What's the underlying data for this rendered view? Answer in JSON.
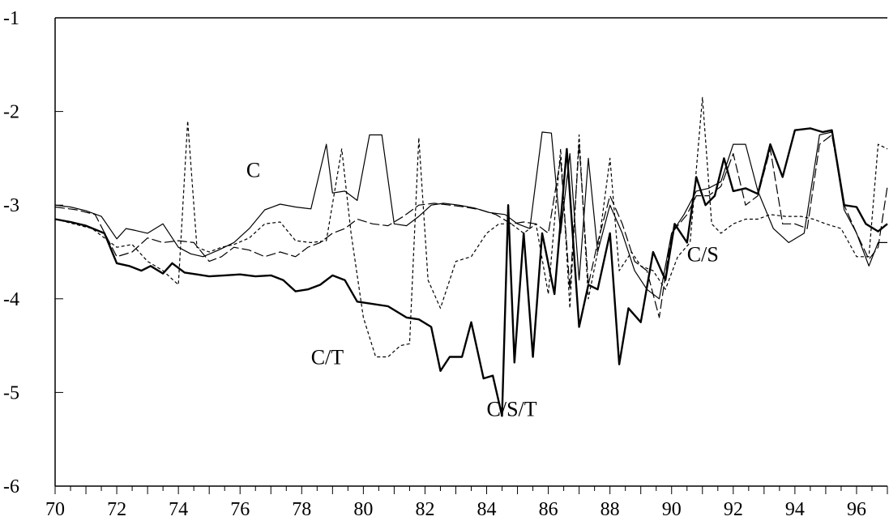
{
  "chart_data": {
    "type": "line",
    "title": "",
    "xlabel": "",
    "ylabel": "",
    "xlim": [
      70,
      97
    ],
    "ylim": [
      -6,
      -1
    ],
    "x_ticks": [
      "70",
      "72",
      "74",
      "76",
      "78",
      "80",
      "82",
      "84",
      "86",
      "88",
      "90",
      "92",
      "94",
      "96"
    ],
    "y_ticks": [
      "-1",
      "-2",
      "-3",
      "-4",
      "-5",
      "-6"
    ],
    "grid": false,
    "annotations": [
      {
        "text": "C",
        "x": 76.2,
        "y": -2.7
      },
      {
        "text": "C/T",
        "x": 78.3,
        "y": -4.7
      },
      {
        "text": "C/S/T",
        "x": 84.0,
        "y": -5.25
      },
      {
        "text": "C/S",
        "x": 90.5,
        "y": -3.6
      }
    ],
    "series": [
      {
        "style": "solid-thin",
        "points": [
          [
            70,
            -3.0
          ],
          [
            70.5,
            -3.02
          ],
          [
            71,
            -3.06
          ],
          [
            71.5,
            -3.12
          ],
          [
            72,
            -3.36
          ],
          [
            72.3,
            -3.25
          ],
          [
            72.6,
            -3.27
          ],
          [
            73,
            -3.3
          ],
          [
            73.5,
            -3.2
          ],
          [
            74,
            -3.45
          ],
          [
            74.4,
            -3.52
          ],
          [
            74.8,
            -3.55
          ],
          [
            75.3,
            -3.48
          ],
          [
            75.8,
            -3.4
          ],
          [
            76.3,
            -3.25
          ],
          [
            76.8,
            -3.05
          ],
          [
            77.3,
            -2.99
          ],
          [
            77.8,
            -3.02
          ],
          [
            78.3,
            -3.04
          ],
          [
            78.8,
            -2.35
          ],
          [
            79.0,
            -2.87
          ],
          [
            79.4,
            -2.85
          ],
          [
            79.8,
            -2.95
          ],
          [
            80.2,
            -2.25
          ],
          [
            80.6,
            -2.25
          ],
          [
            81.0,
            -3.2
          ],
          [
            81.4,
            -3.22
          ],
          [
            81.8,
            -3.12
          ],
          [
            82.2,
            -3.0
          ],
          [
            82.6,
            -2.98
          ],
          [
            83.1,
            -3.0
          ],
          [
            83.6,
            -3.03
          ],
          [
            84.1,
            -3.08
          ],
          [
            84.6,
            -3.1
          ],
          [
            85.0,
            -3.2
          ],
          [
            85.4,
            -3.25
          ],
          [
            85.8,
            -2.22
          ],
          [
            86.1,
            -2.23
          ],
          [
            86.4,
            -3.3
          ],
          [
            86.7,
            -2.45
          ],
          [
            87.0,
            -3.8
          ],
          [
            87.3,
            -2.5
          ],
          [
            87.6,
            -3.5
          ],
          [
            88.0,
            -3.0
          ],
          [
            88.4,
            -3.3
          ],
          [
            88.8,
            -3.7
          ],
          [
            89.2,
            -3.9
          ],
          [
            89.6,
            -4.0
          ],
          [
            90.0,
            -3.3
          ],
          [
            90.4,
            -3.1
          ],
          [
            90.8,
            -2.85
          ],
          [
            91.2,
            -2.82
          ],
          [
            91.6,
            -2.75
          ],
          [
            92.0,
            -2.35
          ],
          [
            92.4,
            -2.35
          ],
          [
            92.8,
            -2.85
          ],
          [
            93.3,
            -3.25
          ],
          [
            93.8,
            -3.4
          ],
          [
            94.3,
            -3.3
          ],
          [
            94.8,
            -2.25
          ],
          [
            95.2,
            -2.22
          ],
          [
            95.6,
            -3.05
          ],
          [
            96.0,
            -3.3
          ],
          [
            96.4,
            -3.65
          ],
          [
            96.7,
            -3.4
          ],
          [
            97,
            -3.4
          ]
        ]
      },
      {
        "style": "solid-thick",
        "points": [
          [
            70,
            -3.15
          ],
          [
            70.5,
            -3.18
          ],
          [
            71,
            -3.22
          ],
          [
            71.6,
            -3.3
          ],
          [
            72,
            -3.62
          ],
          [
            72.4,
            -3.65
          ],
          [
            72.8,
            -3.7
          ],
          [
            73.1,
            -3.65
          ],
          [
            73.5,
            -3.73
          ],
          [
            73.8,
            -3.62
          ],
          [
            74.2,
            -3.72
          ],
          [
            74.6,
            -3.74
          ],
          [
            75.0,
            -3.76
          ],
          [
            75.5,
            -3.75
          ],
          [
            76,
            -3.74
          ],
          [
            76.5,
            -3.76
          ],
          [
            77,
            -3.75
          ],
          [
            77.4,
            -3.8
          ],
          [
            77.8,
            -3.92
          ],
          [
            78.2,
            -3.9
          ],
          [
            78.6,
            -3.85
          ],
          [
            79.0,
            -3.75
          ],
          [
            79.4,
            -3.8
          ],
          [
            79.8,
            -4.03
          ],
          [
            80.2,
            -4.05
          ],
          [
            80.8,
            -4.08
          ],
          [
            81.4,
            -4.2
          ],
          [
            81.8,
            -4.22
          ],
          [
            82.2,
            -4.3
          ],
          [
            82.5,
            -4.77
          ],
          [
            82.8,
            -4.62
          ],
          [
            83.2,
            -4.62
          ],
          [
            83.5,
            -4.25
          ],
          [
            83.9,
            -4.85
          ],
          [
            84.2,
            -4.82
          ],
          [
            84.5,
            -5.25
          ],
          [
            84.7,
            -3.0
          ],
          [
            84.9,
            -4.68
          ],
          [
            85.2,
            -3.3
          ],
          [
            85.5,
            -4.62
          ],
          [
            85.8,
            -3.3
          ],
          [
            86.2,
            -3.95
          ],
          [
            86.6,
            -2.4
          ],
          [
            87.0,
            -4.3
          ],
          [
            87.3,
            -3.85
          ],
          [
            87.6,
            -3.9
          ],
          [
            88.0,
            -3.3
          ],
          [
            88.3,
            -4.7
          ],
          [
            88.6,
            -4.1
          ],
          [
            89.0,
            -4.25
          ],
          [
            89.4,
            -3.5
          ],
          [
            89.8,
            -3.8
          ],
          [
            90.1,
            -3.2
          ],
          [
            90.5,
            -3.4
          ],
          [
            90.8,
            -2.7
          ],
          [
            91.1,
            -3.0
          ],
          [
            91.4,
            -2.9
          ],
          [
            91.7,
            -2.5
          ],
          [
            92.0,
            -2.85
          ],
          [
            92.4,
            -2.82
          ],
          [
            92.8,
            -2.88
          ],
          [
            93.2,
            -2.35
          ],
          [
            93.6,
            -2.7
          ],
          [
            94.0,
            -2.2
          ],
          [
            94.5,
            -2.18
          ],
          [
            94.9,
            -2.22
          ],
          [
            95.2,
            -2.2
          ],
          [
            95.6,
            -3.0
          ],
          [
            96,
            -3.02
          ],
          [
            96.3,
            -3.2
          ],
          [
            96.7,
            -3.28
          ],
          [
            97,
            -3.2
          ]
        ]
      },
      {
        "style": "dashed-short",
        "points": [
          [
            70,
            -3.15
          ],
          [
            70.6,
            -3.2
          ],
          [
            71.2,
            -3.25
          ],
          [
            72,
            -3.45
          ],
          [
            72.5,
            -3.42
          ],
          [
            73,
            -3.6
          ],
          [
            73.5,
            -3.7
          ],
          [
            74,
            -3.85
          ],
          [
            74.3,
            -2.1
          ],
          [
            74.6,
            -3.45
          ],
          [
            75,
            -3.5
          ],
          [
            75.4,
            -3.45
          ],
          [
            75.8,
            -3.42
          ],
          [
            76.3,
            -3.35
          ],
          [
            76.8,
            -3.2
          ],
          [
            77.3,
            -3.18
          ],
          [
            77.8,
            -3.38
          ],
          [
            78.3,
            -3.4
          ],
          [
            78.8,
            -3.38
          ],
          [
            79.3,
            -2.4
          ],
          [
            79.6,
            -3.3
          ],
          [
            80.0,
            -4.2
          ],
          [
            80.4,
            -4.62
          ],
          [
            80.8,
            -4.62
          ],
          [
            81.2,
            -4.5
          ],
          [
            81.5,
            -4.48
          ],
          [
            81.8,
            -2.28
          ],
          [
            82.1,
            -3.8
          ],
          [
            82.5,
            -4.1
          ],
          [
            83.0,
            -3.6
          ],
          [
            83.5,
            -3.55
          ],
          [
            84.0,
            -3.3
          ],
          [
            84.4,
            -3.2
          ],
          [
            84.8,
            -3.2
          ],
          [
            85.2,
            -3.3
          ],
          [
            85.6,
            -3.2
          ],
          [
            86.0,
            -3.95
          ],
          [
            86.4,
            -2.4
          ],
          [
            86.7,
            -4.1
          ],
          [
            87.0,
            -2.25
          ],
          [
            87.3,
            -4.0
          ],
          [
            87.6,
            -3.5
          ],
          [
            88.0,
            -2.5
          ],
          [
            88.3,
            -3.7
          ],
          [
            88.7,
            -3.5
          ],
          [
            89.0,
            -3.65
          ],
          [
            89.4,
            -3.7
          ],
          [
            89.8,
            -3.9
          ],
          [
            90.2,
            -3.55
          ],
          [
            90.6,
            -3.4
          ],
          [
            91.0,
            -1.85
          ],
          [
            91.3,
            -3.2
          ],
          [
            91.6,
            -3.3
          ],
          [
            92.0,
            -3.2
          ],
          [
            92.4,
            -3.15
          ],
          [
            92.8,
            -3.15
          ],
          [
            93.2,
            -3.1
          ],
          [
            93.7,
            -3.12
          ],
          [
            94.2,
            -3.12
          ],
          [
            94.6,
            -3.15
          ],
          [
            95.0,
            -3.2
          ],
          [
            95.5,
            -3.25
          ],
          [
            96,
            -3.55
          ],
          [
            96.4,
            -3.55
          ],
          [
            96.7,
            -2.35
          ],
          [
            97,
            -2.4
          ]
        ]
      },
      {
        "style": "dashed-long",
        "points": [
          [
            70,
            -3.02
          ],
          [
            70.7,
            -3.05
          ],
          [
            71.3,
            -3.1
          ],
          [
            72,
            -3.55
          ],
          [
            72.5,
            -3.5
          ],
          [
            73,
            -3.35
          ],
          [
            73.5,
            -3.4
          ],
          [
            74,
            -3.38
          ],
          [
            74.5,
            -3.4
          ],
          [
            75,
            -3.6
          ],
          [
            75.4,
            -3.55
          ],
          [
            75.8,
            -3.45
          ],
          [
            76.3,
            -3.48
          ],
          [
            76.8,
            -3.55
          ],
          [
            77.3,
            -3.5
          ],
          [
            77.8,
            -3.55
          ],
          [
            78.2,
            -3.45
          ],
          [
            78.6,
            -3.4
          ],
          [
            79.0,
            -3.3
          ],
          [
            79.4,
            -3.25
          ],
          [
            79.8,
            -3.15
          ],
          [
            80.3,
            -3.2
          ],
          [
            80.8,
            -3.22
          ],
          [
            81.3,
            -3.12
          ],
          [
            81.8,
            -3.0
          ],
          [
            82.3,
            -2.98
          ],
          [
            82.8,
            -3.0
          ],
          [
            83.3,
            -3.02
          ],
          [
            83.8,
            -3.05
          ],
          [
            84.3,
            -3.1
          ],
          [
            84.8,
            -3.2
          ],
          [
            85.2,
            -3.18
          ],
          [
            85.6,
            -3.2
          ],
          [
            86.0,
            -3.3
          ],
          [
            86.4,
            -2.5
          ],
          [
            86.7,
            -3.9
          ],
          [
            87.0,
            -2.35
          ],
          [
            87.3,
            -3.85
          ],
          [
            87.6,
            -3.4
          ],
          [
            88.0,
            -2.9
          ],
          [
            88.4,
            -3.2
          ],
          [
            88.8,
            -3.6
          ],
          [
            89.2,
            -3.7
          ],
          [
            89.6,
            -4.2
          ],
          [
            90.0,
            -3.3
          ],
          [
            90.5,
            -3.1
          ],
          [
            90.8,
            -2.9
          ],
          [
            91.2,
            -2.9
          ],
          [
            91.6,
            -2.8
          ],
          [
            92.0,
            -2.45
          ],
          [
            92.4,
            -3.0
          ],
          [
            92.8,
            -2.9
          ],
          [
            93.2,
            -2.4
          ],
          [
            93.6,
            -3.2
          ],
          [
            94.0,
            -3.2
          ],
          [
            94.4,
            -3.25
          ],
          [
            94.8,
            -2.35
          ],
          [
            95.2,
            -2.25
          ],
          [
            95.6,
            -3.0
          ],
          [
            96,
            -3.3
          ],
          [
            96.4,
            -3.58
          ],
          [
            96.7,
            -3.45
          ],
          [
            97,
            -2.8
          ]
        ]
      }
    ]
  }
}
